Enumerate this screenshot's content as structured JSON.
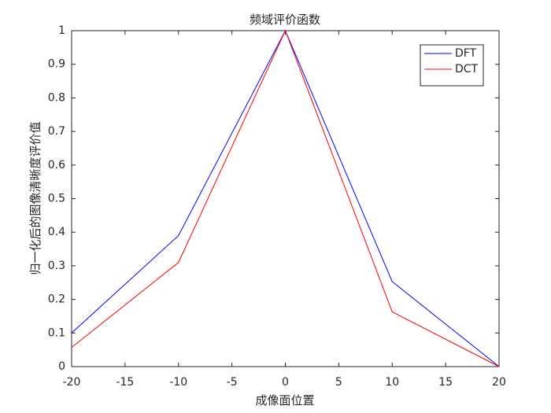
{
  "chart_data": {
    "type": "line",
    "title": "频域评价函数",
    "x_label": "成像面位置",
    "y_label": "归一化后的图像清晰度评价值",
    "x": [
      -20,
      -10,
      0,
      10,
      20
    ],
    "series": [
      {
        "name": "DFT",
        "color": "#0000ff",
        "values": [
          0.1,
          0.39,
          1,
          0.253,
          0
        ]
      },
      {
        "name": "DCT",
        "color": "#ff0000",
        "values": [
          0.057,
          0.31,
          1,
          0.163,
          0
        ]
      }
    ],
    "xlim": [
      -20,
      20
    ],
    "xticks": [
      -20,
      -15,
      -10,
      -5,
      0,
      5,
      10,
      15,
      20
    ],
    "ylim": [
      0,
      1
    ],
    "yticks": [
      0,
      0.1,
      0.2,
      0.3,
      0.4,
      0.5,
      0.6,
      0.7,
      0.8,
      0.9,
      1
    ],
    "legend": "top-right"
  }
}
